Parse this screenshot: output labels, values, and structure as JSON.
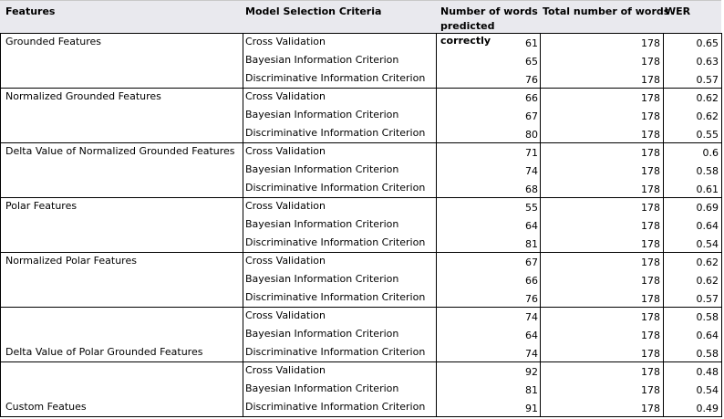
{
  "headers": {
    "features": "Features",
    "criteria": "Model Selection Criteria",
    "predicted": "Number of words predicted correctly",
    "total": "Total number of words",
    "wer": "WER"
  },
  "groups": [
    {
      "feature": "Grounded Features",
      "feature_position": "top",
      "rows": [
        {
          "criterion": "Cross Validation",
          "predicted": "61",
          "total": "178",
          "wer": "0.65"
        },
        {
          "criterion": "Bayesian Information Criterion",
          "predicted": "65",
          "total": "178",
          "wer": "0.63"
        },
        {
          "criterion": "Discriminative Information Criterion",
          "predicted": "76",
          "total": "178",
          "wer": "0.57"
        }
      ]
    },
    {
      "feature": "Normalized Grounded Features",
      "feature_position": "top",
      "rows": [
        {
          "criterion": "Cross Validation",
          "predicted": "66",
          "total": "178",
          "wer": "0.62"
        },
        {
          "criterion": "Bayesian Information Criterion",
          "predicted": "67",
          "total": "178",
          "wer": "0.62"
        },
        {
          "criterion": "Discriminative Information Criterion",
          "predicted": "80",
          "total": "178",
          "wer": "0.55"
        }
      ]
    },
    {
      "feature": "Delta Value of Normalized Grounded Features",
      "feature_position": "top",
      "rows": [
        {
          "criterion": "Cross Validation",
          "predicted": "71",
          "total": "178",
          "wer": "0.6"
        },
        {
          "criterion": "Bayesian Information Criterion",
          "predicted": "74",
          "total": "178",
          "wer": "0.58"
        },
        {
          "criterion": "Discriminative Information Criterion",
          "predicted": "68",
          "total": "178",
          "wer": "0.61"
        }
      ]
    },
    {
      "feature": "Polar Features",
      "feature_position": "top",
      "rows": [
        {
          "criterion": "Cross Validation",
          "predicted": "55",
          "total": "178",
          "wer": "0.69"
        },
        {
          "criterion": "Bayesian Information Criterion",
          "predicted": "64",
          "total": "178",
          "wer": "0.64"
        },
        {
          "criterion": "Discriminative Information Criterion",
          "predicted": "81",
          "total": "178",
          "wer": "0.54"
        }
      ]
    },
    {
      "feature": "Normalized Polar Features",
      "feature_position": "top",
      "rows": [
        {
          "criterion": "Cross Validation",
          "predicted": "67",
          "total": "178",
          "wer": "0.62"
        },
        {
          "criterion": "Bayesian Information Criterion",
          "predicted": "66",
          "total": "178",
          "wer": "0.62"
        },
        {
          "criterion": "Discriminative Information Criterion",
          "predicted": "76",
          "total": "178",
          "wer": "0.57"
        }
      ]
    },
    {
      "feature": "Delta Value of Polar Grounded Features",
      "feature_position": "bottom",
      "rows": [
        {
          "criterion": "Cross Validation",
          "predicted": "74",
          "total": "178",
          "wer": "0.58"
        },
        {
          "criterion": "Bayesian Information Criterion",
          "predicted": "64",
          "total": "178",
          "wer": "0.64"
        },
        {
          "criterion": "Discriminative Information Criterion",
          "predicted": "74",
          "total": "178",
          "wer": "0.58"
        }
      ]
    },
    {
      "feature": "Custom Featues",
      "feature_position": "bottom",
      "rows": [
        {
          "criterion": "Cross Validation",
          "predicted": "92",
          "total": "178",
          "wer": "0.48"
        },
        {
          "criterion": "Bayesian Information Criterion",
          "predicted": "81",
          "total": "178",
          "wer": "0.54"
        },
        {
          "criterion": "Discriminative Information Criterion",
          "predicted": "91",
          "total": "178",
          "wer": "0.49"
        }
      ]
    }
  ]
}
